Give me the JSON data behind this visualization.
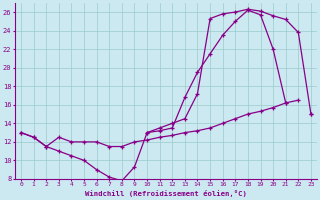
{
  "xlabel": "Windchill (Refroidissement éolien,°C)",
  "bg_color": "#cce8f0",
  "line_color": "#880088",
  "xlim": [
    -0.5,
    23.5
  ],
  "ylim": [
    8,
    27
  ],
  "xticks": [
    0,
    1,
    2,
    3,
    4,
    5,
    6,
    7,
    8,
    9,
    10,
    11,
    12,
    13,
    14,
    15,
    16,
    17,
    18,
    19,
    20,
    21,
    22,
    23
  ],
  "yticks": [
    8,
    10,
    12,
    14,
    16,
    18,
    20,
    22,
    24,
    26
  ],
  "grid_color": "#99cccc",
  "line1_x": [
    0,
    1,
    2,
    3,
    4,
    5,
    6,
    7,
    8,
    9,
    10,
    11,
    12,
    13,
    14,
    15,
    16,
    17,
    18,
    19,
    20,
    21,
    22,
    23
  ],
  "line1_y": [
    13,
    12.5,
    11.5,
    11.0,
    10.5,
    10.0,
    9.0,
    8.2,
    7.8,
    9.3,
    13.0,
    13.2,
    13.5,
    16.8,
    19.5,
    21.5,
    23.5,
    25.0,
    26.2,
    25.7,
    22.0,
    16.2,
    16.5,
    null
  ],
  "line2_x": [
    0,
    1,
    2,
    3,
    4,
    5,
    6,
    7,
    8,
    9,
    10,
    11,
    12,
    13,
    14,
    15,
    16,
    17,
    18,
    19,
    20,
    21,
    22,
    23
  ],
  "line2_y": [
    13,
    12.5,
    11.5,
    12.5,
    12.0,
    12.0,
    12.0,
    11.5,
    11.5,
    12.0,
    12.2,
    12.5,
    12.7,
    13.0,
    13.2,
    13.5,
    14.0,
    14.5,
    15.0,
    15.3,
    15.7,
    16.2,
    null,
    15.0
  ],
  "line3_x": [
    10,
    11,
    12,
    13,
    14,
    15,
    16,
    17,
    18,
    19,
    20,
    21,
    22,
    23
  ],
  "line3_y": [
    13.0,
    13.5,
    14.0,
    14.5,
    17.2,
    25.3,
    25.8,
    26.0,
    26.3,
    26.1,
    25.6,
    25.2,
    23.8,
    15.0
  ]
}
